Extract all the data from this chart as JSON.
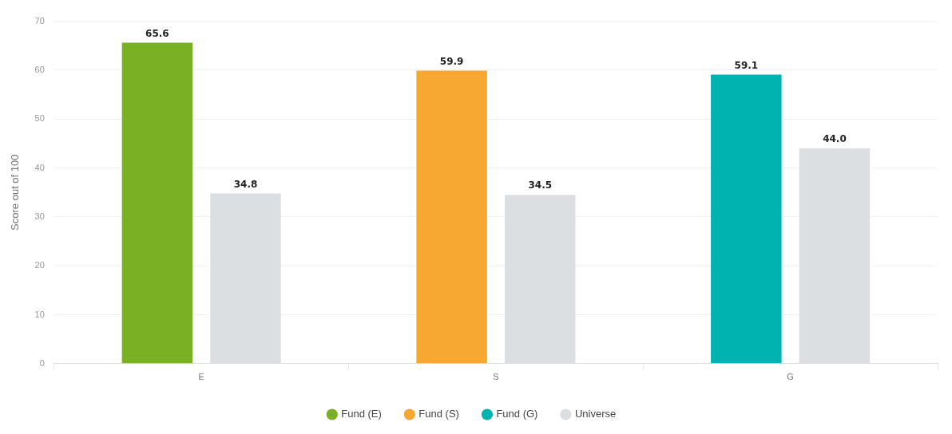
{
  "chart_data": {
    "type": "bar",
    "ylabel": "Score out of 100",
    "categories": [
      "E",
      "S",
      "G"
    ],
    "series": [
      {
        "name": "Fund (E)",
        "color": "#7ab023",
        "values": [
          65.6,
          null,
          null
        ],
        "value_labels": [
          "65.6",
          null,
          null
        ]
      },
      {
        "name": "Fund (S)",
        "color": "#f7a833",
        "values": [
          null,
          59.9,
          null
        ],
        "value_labels": [
          null,
          "59.9",
          null
        ]
      },
      {
        "name": "Fund (G)",
        "color": "#00b2b0",
        "values": [
          null,
          null,
          59.1
        ],
        "value_labels": [
          null,
          null,
          "59.1"
        ]
      },
      {
        "name": "Universe",
        "color": "#dcdfe1",
        "values": [
          34.8,
          34.5,
          44.0
        ],
        "value_labels": [
          "34.8",
          "34.5",
          "44.0"
        ]
      }
    ],
    "ylim": [
      0,
      70
    ],
    "yticks": [
      0,
      10,
      20,
      30,
      40,
      50,
      60,
      70
    ],
    "grid": "y",
    "legend": "bottom"
  }
}
